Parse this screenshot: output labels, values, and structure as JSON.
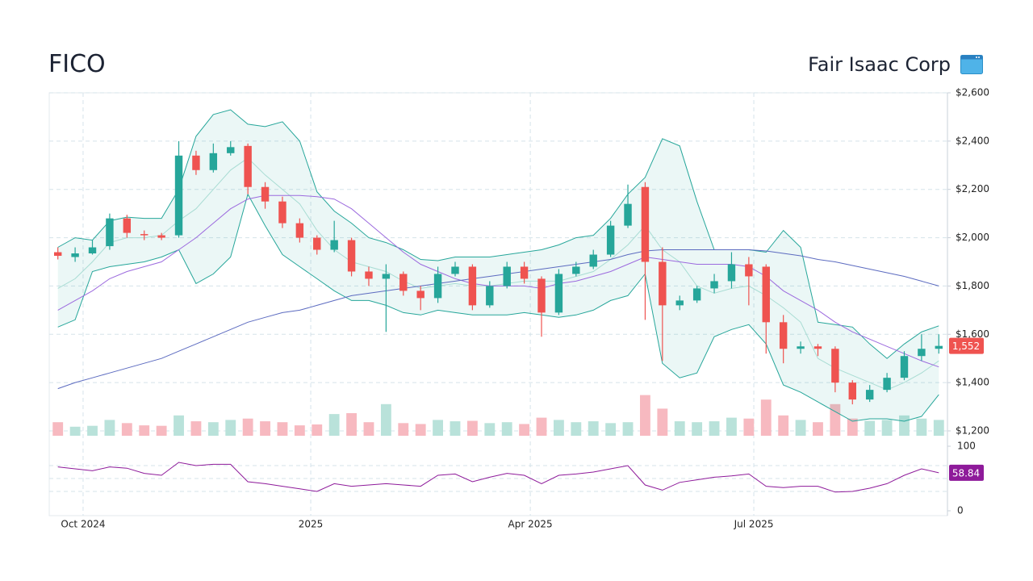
{
  "header": {
    "symbol": "FICO",
    "company": "Fair Isaac Corp"
  },
  "chart_data": {
    "type": "candlestick",
    "x": [
      0,
      1,
      2,
      3,
      4,
      5,
      6,
      7,
      8,
      9,
      10,
      11,
      12,
      13,
      14,
      15,
      16,
      17,
      18,
      19,
      20,
      21,
      22,
      23,
      24,
      25,
      26,
      27,
      28,
      29,
      30,
      31,
      32,
      33,
      34,
      35,
      36,
      37,
      38,
      39,
      40,
      41,
      42,
      43,
      44,
      45,
      46,
      47,
      48,
      49,
      50,
      51
    ],
    "open": [
      1940,
      1920,
      1935,
      1965,
      2080,
      2015,
      2010,
      2010,
      2340,
      2280,
      2350,
      2380,
      2210,
      2150,
      2060,
      2000,
      1950,
      1990,
      1860,
      1830,
      1850,
      1780,
      1750,
      1850,
      1880,
      1720,
      1800,
      1880,
      1830,
      1690,
      1850,
      1880,
      1930,
      2050,
      2210,
      1900,
      1720,
      1740,
      1790,
      1820,
      1890,
      1880,
      1650,
      1540,
      1550,
      1540,
      1400,
      1330,
      1370,
      1420,
      1510,
      1540
    ],
    "high": [
      1960,
      1960,
      1990,
      2100,
      2095,
      2030,
      2020,
      2400,
      2360,
      2390,
      2400,
      2390,
      2230,
      2170,
      2080,
      2010,
      2070,
      2000,
      1880,
      1890,
      1860,
      1800,
      1880,
      1900,
      1890,
      1820,
      1900,
      1900,
      1840,
      1870,
      1900,
      1950,
      2070,
      2220,
      2230,
      1960,
      1760,
      1800,
      1850,
      1940,
      1920,
      1890,
      1680,
      1570,
      1560,
      1550,
      1410,
      1390,
      1440,
      1530,
      1600,
      1600
    ],
    "low": [
      1910,
      1900,
      1930,
      1950,
      2000,
      1990,
      1990,
      2000,
      2260,
      2270,
      2340,
      2180,
      2120,
      2040,
      1980,
      1930,
      1940,
      1840,
      1800,
      1610,
      1760,
      1700,
      1730,
      1840,
      1700,
      1710,
      1790,
      1810,
      1590,
      1680,
      1840,
      1870,
      1920,
      2040,
      1660,
      1490,
      1700,
      1730,
      1770,
      1790,
      1720,
      1520,
      1480,
      1520,
      1510,
      1360,
      1310,
      1320,
      1360,
      1410,
      1490,
      1520
    ],
    "close": [
      1925,
      1935,
      1960,
      2080,
      2020,
      2010,
      2000,
      2340,
      2280,
      2350,
      2375,
      2210,
      2150,
      2060,
      2000,
      1950,
      1990,
      1860,
      1830,
      1850,
      1780,
      1750,
      1850,
      1880,
      1720,
      1800,
      1880,
      1830,
      1690,
      1850,
      1880,
      1930,
      2050,
      2140,
      1900,
      1720,
      1740,
      1790,
      1820,
      1890,
      1840,
      1650,
      1540,
      1550,
      1540,
      1400,
      1330,
      1370,
      1420,
      1510,
      1540,
      1552
    ],
    "volume": [
      300000,
      200000,
      220000,
      350000,
      280000,
      230000,
      220000,
      450000,
      320000,
      300000,
      350000,
      380000,
      320000,
      300000,
      230000,
      250000,
      480000,
      500000,
      300000,
      700000,
      280000,
      260000,
      350000,
      320000,
      330000,
      280000,
      300000,
      260000,
      400000,
      350000,
      300000,
      320000,
      280000,
      300000,
      900000,
      600000,
      320000,
      300000,
      320000,
      400000,
      380000,
      800000,
      450000,
      350000,
      300000,
      700000,
      380000,
      330000,
      350000,
      450000,
      380000,
      350000
    ],
    "volume_ylim": [
      0,
      2500000
    ],
    "up_color": "#26a69a",
    "down_color": "#ef5350",
    "volume_up_color": "#b9e2da",
    "volume_down_color": "#f7b9c0",
    "bollinger": {
      "color": "#26a69a",
      "fill": "rgba(38,166,154,0.09)",
      "upper": [
        1960,
        2000,
        1990,
        2070,
        2085,
        2080,
        2080,
        2200,
        2420,
        2510,
        2530,
        2470,
        2460,
        2480,
        2400,
        2190,
        2110,
        2060,
        2000,
        1980,
        1950,
        1910,
        1905,
        1920,
        1920,
        1920,
        1930,
        1940,
        1950,
        1970,
        2000,
        2010,
        2080,
        2180,
        2250,
        2410,
        2380,
        2150,
        1950,
        1950,
        1950,
        1940,
        2030,
        1960,
        1650,
        1640,
        1630,
        1560,
        1500,
        1560,
        1610,
        1635
      ],
      "middle": [
        1790,
        1830,
        1900,
        1980,
        2000,
        2000,
        2010,
        2070,
        2120,
        2200,
        2280,
        2330,
        2260,
        2200,
        2140,
        2030,
        1950,
        1900,
        1880,
        1860,
        1820,
        1790,
        1800,
        1810,
        1800,
        1800,
        1810,
        1820,
        1820,
        1820,
        1840,
        1860,
        1910,
        1970,
        2050,
        1950,
        1900,
        1800,
        1770,
        1790,
        1800,
        1760,
        1710,
        1650,
        1500,
        1460,
        1430,
        1400,
        1370,
        1400,
        1440,
        1490
      ],
      "middle_color": "#a8dcd3",
      "lower": [
        1630,
        1660,
        1860,
        1880,
        1890,
        1900,
        1920,
        1950,
        1810,
        1850,
        1920,
        2180,
        2050,
        1930,
        1880,
        1830,
        1780,
        1740,
        1740,
        1720,
        1690,
        1680,
        1700,
        1690,
        1680,
        1680,
        1680,
        1690,
        1680,
        1670,
        1680,
        1700,
        1740,
        1760,
        1850,
        1480,
        1420,
        1440,
        1590,
        1620,
        1640,
        1560,
        1390,
        1360,
        1320,
        1280,
        1240,
        1250,
        1250,
        1240,
        1260,
        1350
      ]
    },
    "moving_averages": [
      {
        "color": "#9c6ade",
        "values": [
          1700,
          1740,
          1780,
          1830,
          1860,
          1880,
          1900,
          1950,
          2000,
          2060,
          2120,
          2160,
          2175,
          2175,
          2175,
          2170,
          2160,
          2120,
          2060,
          2000,
          1940,
          1890,
          1860,
          1830,
          1810,
          1800,
          1800,
          1800,
          1790,
          1810,
          1820,
          1840,
          1860,
          1890,
          1920,
          1910,
          1900,
          1890,
          1890,
          1890,
          1880,
          1840,
          1780,
          1740,
          1700,
          1650,
          1610,
          1580,
          1550,
          1520,
          1490,
          1465
        ]
      },
      {
        "color": "#5c6bc0",
        "values": [
          1375,
          1400,
          1420,
          1440,
          1460,
          1480,
          1500,
          1530,
          1560,
          1590,
          1620,
          1650,
          1670,
          1690,
          1700,
          1720,
          1740,
          1760,
          1770,
          1780,
          1790,
          1800,
          1810,
          1820,
          1830,
          1840,
          1850,
          1860,
          1870,
          1880,
          1890,
          1900,
          1910,
          1930,
          1945,
          1950,
          1950,
          1950,
          1950,
          1950,
          1950,
          1945,
          1935,
          1925,
          1910,
          1900,
          1885,
          1870,
          1855,
          1840,
          1820,
          1800
        ]
      }
    ],
    "last_price": {
      "value": 1552,
      "label": "1,552"
    },
    "xlim": [
      -0.5,
      51.5
    ],
    "xticks": [
      {
        "value": 1.46,
        "label": "Oct 2024"
      },
      {
        "value": 14.64,
        "label": "2025"
      },
      {
        "value": 27.35,
        "label": "Apr 2025"
      },
      {
        "value": 40.29,
        "label": "Jul 2025"
      }
    ],
    "ylim": [
      1200,
      2600
    ],
    "yticks": [
      {
        "value": 1200,
        "label": "$1,200"
      },
      {
        "value": 1400,
        "label": "$1,400"
      },
      {
        "value": 1600,
        "label": "$1,600"
      },
      {
        "value": 1800,
        "label": "$1,800"
      },
      {
        "value": 2000,
        "label": "$2,000"
      },
      {
        "value": 2200,
        "label": "$2,200"
      },
      {
        "value": 2400,
        "label": "$2,400"
      },
      {
        "value": 2600,
        "label": "$2,600"
      }
    ],
    "grid": true,
    "rsi": {
      "color": "#8e1a9a",
      "ylim": [
        0,
        100
      ],
      "yticks": [
        0,
        100
      ],
      "levels": [
        30,
        50,
        70
      ],
      "values": [
        68,
        65,
        62,
        68,
        66,
        58,
        55,
        75,
        70,
        72,
        72,
        45,
        42,
        38,
        34,
        30,
        42,
        38,
        40,
        42,
        40,
        38,
        55,
        57,
        45,
        52,
        58,
        55,
        42,
        55,
        57,
        60,
        65,
        70,
        40,
        32,
        44,
        48,
        52,
        54,
        57,
        38,
        36,
        38,
        38,
        29,
        30,
        35,
        42,
        55,
        65,
        58.84
      ]
    }
  }
}
